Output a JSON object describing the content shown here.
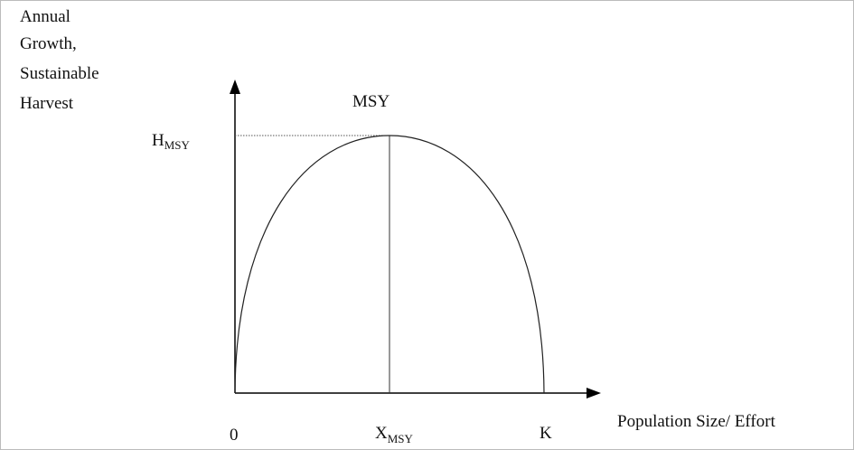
{
  "y_axis_label": [
    "Annual",
    "Growth,",
    "Sustainable",
    "Harvest"
  ],
  "peak_label": "MSY",
  "y_marker": {
    "main": "H",
    "sub": "MSY"
  },
  "x_markers": {
    "origin": "0",
    "x_msy": {
      "main": "X",
      "sub": "MSY"
    },
    "k": "K"
  },
  "x_axis_label": "Population Size/ Effort"
}
